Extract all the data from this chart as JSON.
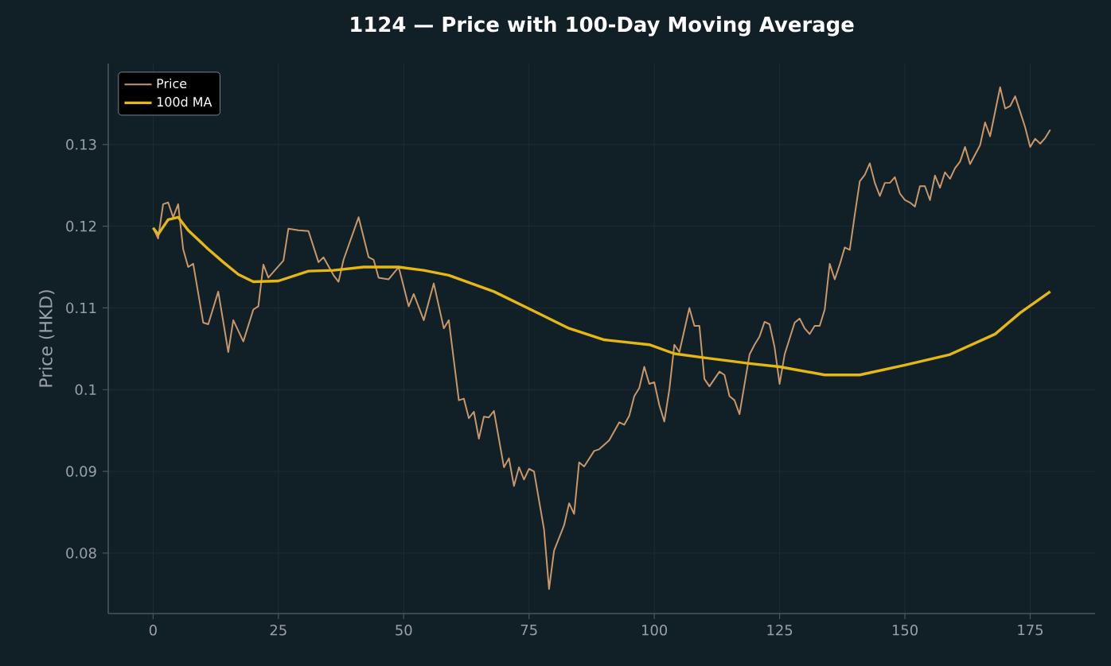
{
  "chart_data": {
    "type": "line",
    "title": "1124 — Price with 100-Day Moving Average",
    "ylabel": "Price (HKD)",
    "xlim": [
      -8.95,
      187.95
    ],
    "ylim": [
      0.0726,
      0.1399
    ],
    "xticks": [
      0,
      25,
      50,
      75,
      100,
      125,
      150,
      175
    ],
    "yticks": [
      0.08,
      0.09,
      0.1,
      0.11,
      0.12,
      0.13
    ],
    "grid": true,
    "legend": "top left",
    "series": [
      {
        "name": "Price",
        "color": "#c8976a",
        "x": [
          0,
          1,
          2,
          3,
          4,
          5,
          6,
          7,
          8,
          10,
          11,
          13,
          15,
          16,
          18,
          20,
          21,
          22,
          23,
          26,
          27,
          29,
          31,
          33,
          34,
          36,
          37,
          38,
          41,
          43,
          44,
          45,
          47,
          49,
          51,
          52,
          54,
          56,
          58,
          59,
          61,
          62,
          63,
          64,
          65,
          66,
          67,
          68,
          70,
          71,
          72,
          73,
          74,
          75,
          76,
          78,
          79,
          80,
          82,
          83,
          84,
          85,
          86,
          88,
          89,
          91,
          93,
          94,
          95,
          96,
          97,
          98,
          99,
          100,
          101,
          102,
          103,
          104,
          105,
          107,
          108,
          109,
          110,
          111,
          113,
          114,
          115,
          116,
          117,
          119,
          120,
          121,
          122,
          123,
          124,
          125,
          126,
          128,
          129,
          130,
          131,
          132,
          133,
          134,
          135,
          136,
          137,
          138,
          139,
          140,
          141,
          142,
          143,
          144,
          145,
          146,
          147,
          148,
          149,
          150,
          151,
          152,
          153,
          154,
          155,
          156,
          157,
          158,
          159,
          160,
          161,
          162,
          163,
          165,
          166,
          167,
          169,
          170,
          171,
          172,
          174,
          175,
          176,
          177,
          178,
          179
        ],
        "values": [
          0.1198,
          0.1185,
          0.1227,
          0.1229,
          0.1211,
          0.1227,
          0.1172,
          0.115,
          0.1154,
          0.1082,
          0.108,
          0.112,
          0.1046,
          0.1085,
          0.1059,
          0.1098,
          0.1102,
          0.1153,
          0.1137,
          0.1158,
          0.1197,
          0.1195,
          0.1194,
          0.1156,
          0.1162,
          0.114,
          0.1132,
          0.1159,
          0.1211,
          0.1162,
          0.1159,
          0.1137,
          0.1135,
          0.115,
          0.1102,
          0.1117,
          0.1085,
          0.113,
          0.1075,
          0.1085,
          0.0987,
          0.0989,
          0.0965,
          0.0973,
          0.094,
          0.0967,
          0.0966,
          0.0974,
          0.0905,
          0.0916,
          0.0882,
          0.0905,
          0.089,
          0.0903,
          0.09,
          0.0829,
          0.0756,
          0.0803,
          0.0834,
          0.0861,
          0.0848,
          0.0911,
          0.0906,
          0.0925,
          0.0927,
          0.0938,
          0.096,
          0.0957,
          0.0968,
          0.0992,
          0.1002,
          0.1028,
          0.1007,
          0.1009,
          0.0981,
          0.0961,
          0.1,
          0.1055,
          0.1046,
          0.11,
          0.1078,
          0.1078,
          0.1013,
          0.1004,
          0.1022,
          0.1018,
          0.0992,
          0.0987,
          0.097,
          0.1043,
          0.1055,
          0.1065,
          0.1083,
          0.108,
          0.1052,
          0.1007,
          0.1043,
          0.1082,
          0.1087,
          0.1075,
          0.1068,
          0.1078,
          0.1078,
          0.1098,
          0.1154,
          0.1135,
          0.1153,
          0.1174,
          0.1171,
          0.1214,
          0.1255,
          0.1263,
          0.1277,
          0.1253,
          0.1237,
          0.1253,
          0.1253,
          0.126,
          0.124,
          0.1232,
          0.1229,
          0.1224,
          0.1249,
          0.1249,
          0.1232,
          0.1262,
          0.1247,
          0.1266,
          0.1258,
          0.1271,
          0.1279,
          0.1297,
          0.1276,
          0.1299,
          0.1327,
          0.131,
          0.137,
          0.1344,
          0.1347,
          0.1359,
          0.1321,
          0.1297,
          0.1307,
          0.1301,
          0.1308,
          0.1318
        ]
      },
      {
        "name": "100d MA",
        "color": "#e6b812",
        "x": [
          0,
          1,
          3,
          5,
          7,
          11,
          14,
          17,
          20,
          25,
          31,
          36,
          42,
          49,
          54,
          59,
          68,
          76,
          83,
          90,
          99,
          104,
          110,
          119,
          125,
          134,
          141,
          150,
          159,
          168,
          173,
          179
        ],
        "values": [
          0.1198,
          0.119,
          0.1208,
          0.1211,
          0.1195,
          0.1172,
          0.1156,
          0.1141,
          0.1132,
          0.1133,
          0.1145,
          0.1146,
          0.115,
          0.115,
          0.1146,
          0.114,
          0.112,
          0.1096,
          0.1075,
          0.1061,
          0.1055,
          0.1044,
          0.1039,
          0.1032,
          0.1028,
          0.1018,
          0.1018,
          0.103,
          0.1043,
          0.1068,
          0.1094,
          0.112
        ]
      }
    ]
  }
}
